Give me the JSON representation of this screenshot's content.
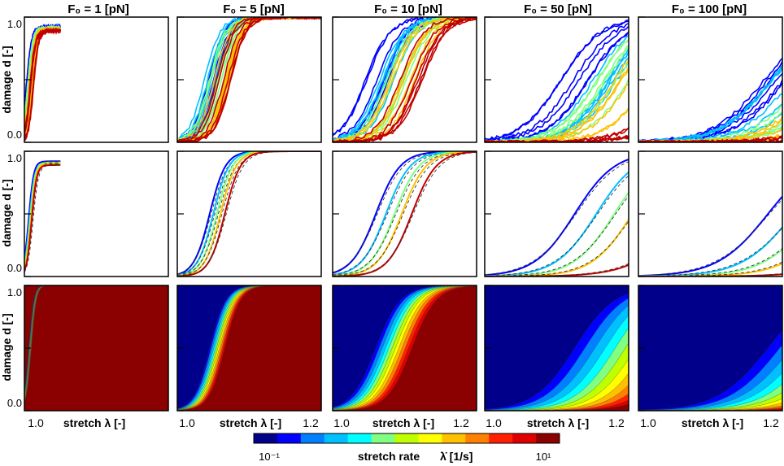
{
  "chart_data": {
    "type": "line",
    "layout": "3 rows x 5 columns small multiples",
    "columns": [
      {
        "F0": "1",
        "title": "F₀ = 1 [pN]"
      },
      {
        "F0": "5",
        "title": "F₀ = 5 [pN]"
      },
      {
        "F0": "10",
        "title": "F₀ = 10 [pN]"
      },
      {
        "F0": "50",
        "title": "F₀ = 50 [pN]"
      },
      {
        "F0": "100",
        "title": "F₀ = 100 [pN]"
      }
    ],
    "rows": [
      {
        "kind": "simulation",
        "content": "damage vs stretch, individual runs"
      },
      {
        "kind": "mean_fit",
        "content": "mean damage (solid) with model fit (dashed)"
      },
      {
        "kind": "contour",
        "content": "filled damage bands by stretch rate"
      }
    ],
    "xlabel": "stretch λ [-]",
    "ylabel": "damage d [-]",
    "xlim": [
      1.0,
      1.2
    ],
    "ylim": [
      0.0,
      1.0
    ],
    "xtick_labels": [
      "1.0",
      "1.2"
    ],
    "ytick_labels": [
      "0.0",
      "1.0"
    ],
    "colorbar": {
      "label": "stretch rate",
      "label_symbol": "λ̇ [1/s]",
      "min_label": "10⁻¹",
      "max_label": "10¹",
      "range": [
        0.1,
        10
      ],
      "scale": "log",
      "colors": [
        "#00008b",
        "#0000ff",
        "#0080ff",
        "#00c0ff",
        "#00ffff",
        "#80ff80",
        "#c0ff00",
        "#ffff00",
        "#ffc000",
        "#ff8000",
        "#ff2000",
        "#e00000",
        "#8b0000"
      ]
    },
    "series": [
      {
        "F0": "1",
        "rate_index": 0,
        "color": "#0000ff",
        "x_center": 1.006,
        "width": 0.0035,
        "plateau": 0.92
      },
      {
        "F0": "1",
        "rate_index": 1,
        "color": "#00c0ff",
        "x_center": 1.007,
        "width": 0.0035,
        "plateau": 0.9
      },
      {
        "F0": "1",
        "rate_index": 2,
        "color": "#80ff80",
        "x_center": 1.008,
        "width": 0.0035,
        "plateau": 0.91
      },
      {
        "F0": "1",
        "rate_index": 3,
        "color": "#ffc000",
        "x_center": 1.009,
        "width": 0.0035,
        "plateau": 0.9
      },
      {
        "F0": "1",
        "rate_index": 4,
        "color": "#c00000",
        "x_center": 1.01,
        "width": 0.0035,
        "plateau": 0.89
      },
      {
        "F0": "5",
        "rate_index": 0,
        "color": "#0000ff",
        "x_center": 1.045,
        "width": 0.011,
        "plateau": 1.0
      },
      {
        "F0": "5",
        "rate_index": 1,
        "color": "#00c0ff",
        "x_center": 1.05,
        "width": 0.011,
        "plateau": 1.0
      },
      {
        "F0": "5",
        "rate_index": 2,
        "color": "#80ff80",
        "x_center": 1.055,
        "width": 0.011,
        "plateau": 1.0
      },
      {
        "F0": "5",
        "rate_index": 3,
        "color": "#ffc000",
        "x_center": 1.06,
        "width": 0.011,
        "plateau": 1.0
      },
      {
        "F0": "5",
        "rate_index": 4,
        "color": "#c00000",
        "x_center": 1.066,
        "width": 0.011,
        "plateau": 1.0
      },
      {
        "F0": "10",
        "rate_index": 0,
        "color": "#0000ff",
        "x_center": 1.06,
        "width": 0.017,
        "plateau": 1.0
      },
      {
        "F0": "10",
        "rate_index": 1,
        "color": "#00c0ff",
        "x_center": 1.074,
        "width": 0.017,
        "plateau": 1.0
      },
      {
        "F0": "10",
        "rate_index": 2,
        "color": "#80ff80",
        "x_center": 1.086,
        "width": 0.017,
        "plateau": 1.0
      },
      {
        "F0": "10",
        "rate_index": 3,
        "color": "#ffc000",
        "x_center": 1.096,
        "width": 0.017,
        "plateau": 1.0
      },
      {
        "F0": "10",
        "rate_index": 4,
        "color": "#c00000",
        "x_center": 1.11,
        "width": 0.017,
        "plateau": 1.0
      },
      {
        "F0": "50",
        "rate_index": 0,
        "color": "#0000ff",
        "x_center": 1.125,
        "width": 0.028,
        "plateau": 1.0
      },
      {
        "F0": "50",
        "rate_index": 1,
        "color": "#00c0ff",
        "x_center": 1.155,
        "width": 0.028,
        "plateau": 1.0
      },
      {
        "F0": "50",
        "rate_index": 2,
        "color": "#80ff80",
        "x_center": 1.18,
        "width": 0.028,
        "plateau": 1.0
      },
      {
        "F0": "50",
        "rate_index": 3,
        "color": "#ffc000",
        "x_center": 1.205,
        "width": 0.028,
        "plateau": 1.0
      },
      {
        "F0": "50",
        "rate_index": 4,
        "color": "#c00000",
        "x_center": 1.28,
        "width": 0.035,
        "plateau": 1.0
      },
      {
        "F0": "100",
        "rate_index": 0,
        "color": "#0000ff",
        "x_center": 1.18,
        "width": 0.035,
        "plateau": 1.0
      },
      {
        "F0": "100",
        "rate_index": 1,
        "color": "#00c0ff",
        "x_center": 1.215,
        "width": 0.035,
        "plateau": 1.0
      },
      {
        "F0": "100",
        "rate_index": 2,
        "color": "#80ff80",
        "x_center": 1.245,
        "width": 0.035,
        "plateau": 1.0
      },
      {
        "F0": "100",
        "rate_index": 3,
        "color": "#ffc000",
        "x_center": 1.275,
        "width": 0.035,
        "plateau": 1.0
      },
      {
        "F0": "100",
        "rate_index": 4,
        "color": "#c00000",
        "x_center": 1.36,
        "width": 0.04,
        "plateau": 1.0
      }
    ]
  }
}
